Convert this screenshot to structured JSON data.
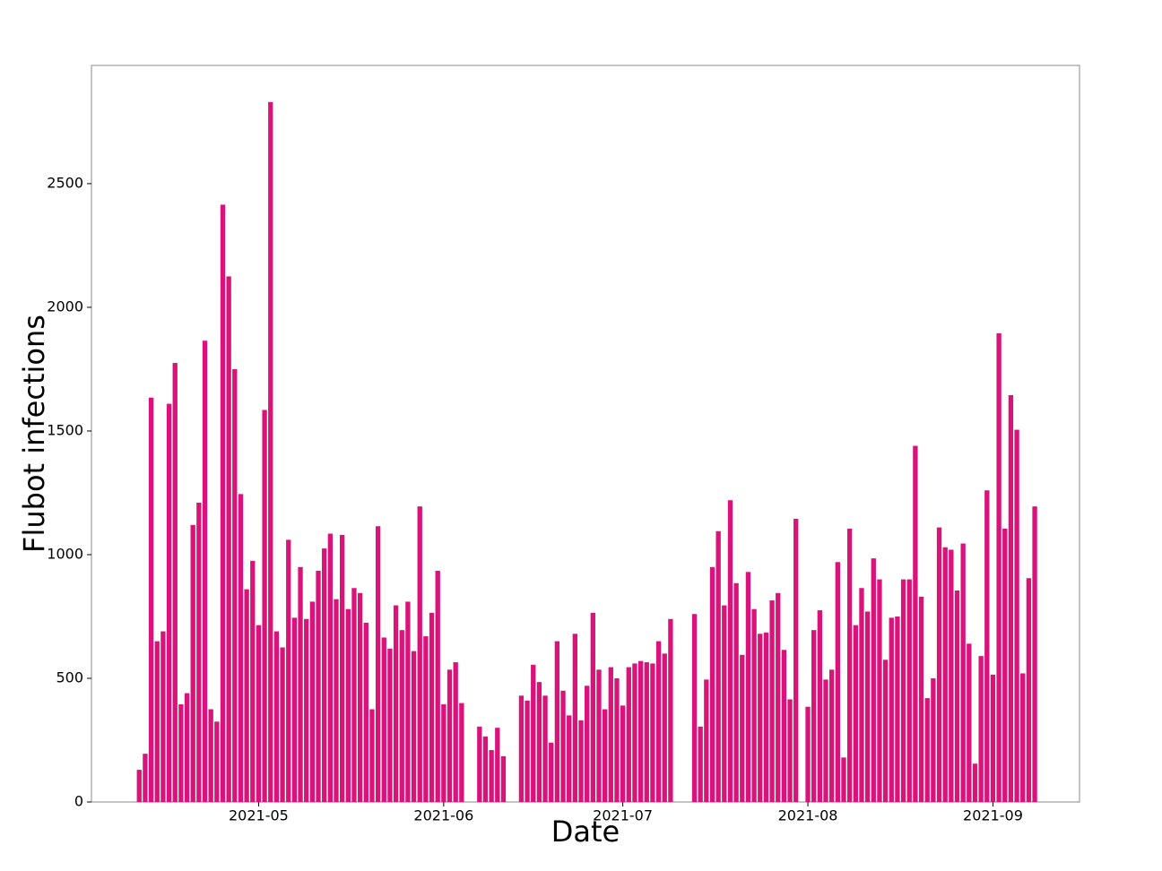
{
  "chart_data": {
    "type": "bar",
    "xlabel": "Date",
    "ylabel": "Flubot infections",
    "x": [
      -20,
      -19,
      -18,
      -17,
      -16,
      -15,
      -14,
      -13,
      -12,
      -11,
      -10,
      -9,
      -8,
      -7,
      -6,
      -5,
      -4,
      -3,
      -2,
      -1,
      0,
      1,
      2,
      3,
      4,
      5,
      6,
      7,
      8,
      9,
      10,
      11,
      12,
      13,
      14,
      15,
      16,
      17,
      18,
      19,
      20,
      21,
      22,
      23,
      24,
      25,
      26,
      27,
      28,
      29,
      30,
      31,
      32,
      33,
      34,
      35,
      36,
      37,
      38,
      39,
      40,
      41,
      42,
      43,
      44,
      45,
      46,
      47,
      48,
      49,
      50,
      51,
      52,
      53,
      54,
      55,
      56,
      57,
      58,
      59,
      60,
      61,
      62,
      63,
      64,
      65,
      66,
      67,
      68,
      69,
      70,
      71,
      72,
      73,
      74,
      75,
      76,
      77,
      78,
      79,
      80,
      81,
      82,
      83,
      84,
      85,
      86,
      87,
      88,
      89,
      90,
      91,
      92,
      93,
      94,
      95,
      96,
      97,
      98,
      99,
      100,
      101,
      102,
      103,
      104,
      105,
      106,
      107,
      108,
      109,
      110,
      111,
      112,
      113,
      114,
      115,
      116,
      117,
      118,
      119,
      120,
      121,
      122,
      123,
      124,
      125,
      126,
      127,
      128,
      129,
      130
    ],
    "values": [
      130,
      195,
      1635,
      650,
      690,
      1610,
      1775,
      395,
      440,
      1120,
      1210,
      1865,
      375,
      325,
      2415,
      2125,
      1750,
      1245,
      860,
      975,
      715,
      1585,
      2830,
      690,
      625,
      1060,
      745,
      950,
      740,
      810,
      935,
      1025,
      1085,
      820,
      1080,
      780,
      865,
      845,
      725,
      375,
      1115,
      665,
      620,
      795,
      695,
      810,
      610,
      1195,
      670,
      765,
      935,
      395,
      535,
      565,
      400,
      null,
      null,
      305,
      265,
      210,
      300,
      185,
      null,
      null,
      430,
      410,
      555,
      485,
      430,
      240,
      650,
      450,
      350,
      680,
      330,
      470,
      765,
      535,
      375,
      545,
      500,
      390,
      545,
      560,
      570,
      565,
      560,
      650,
      600,
      740,
      null,
      null,
      null,
      760,
      305,
      495,
      950,
      1095,
      795,
      1220,
      885,
      595,
      930,
      780,
      680,
      685,
      815,
      845,
      615,
      415,
      1145,
      null,
      385,
      695,
      775,
      495,
      535,
      970,
      180,
      1105,
      715,
      865,
      770,
      985,
      900,
      575,
      745,
      750,
      900,
      900,
      1440,
      830,
      420,
      500,
      1110,
      1030,
      1020,
      855,
      1045,
      640,
      155,
      590,
      1260,
      515,
      1895,
      1105,
      1645,
      1505,
      520,
      905,
      1195
    ],
    "color": "#d9137a",
    "xlim": [
      -28,
      137.5
    ],
    "xticks": [
      {
        "value": 0,
        "label": "2021-05"
      },
      {
        "value": 31,
        "label": "2021-06"
      },
      {
        "value": 61,
        "label": "2021-07"
      },
      {
        "value": 92,
        "label": "2021-08"
      },
      {
        "value": 123,
        "label": "2021-09"
      }
    ],
    "ylim": [
      0,
      2978
    ],
    "yticks": [
      0,
      500,
      1000,
      1500,
      2000,
      2500
    ],
    "grid": false
  }
}
